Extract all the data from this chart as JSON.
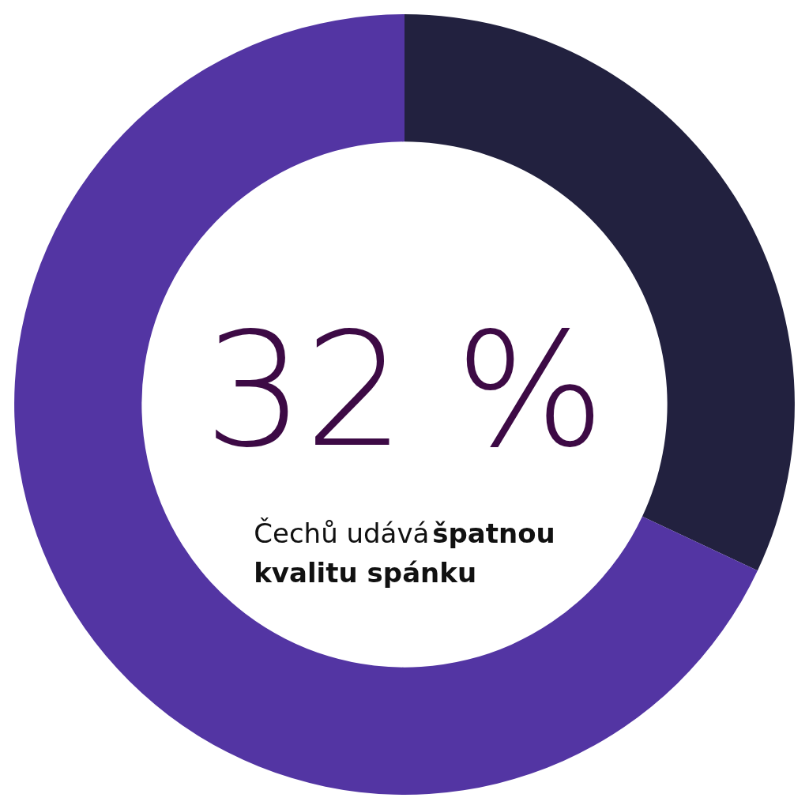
{
  "chart_data": {
    "type": "donut",
    "categories": [
      null,
      null
    ],
    "values": [
      32,
      68
    ],
    "colors": [
      "#22213f",
      "#5335a3"
    ],
    "value_labels": [
      "32 %",
      null
    ],
    "annotations": [
      "Čechů udává",
      "špatnou kvalitu spánku"
    ]
  }
}
